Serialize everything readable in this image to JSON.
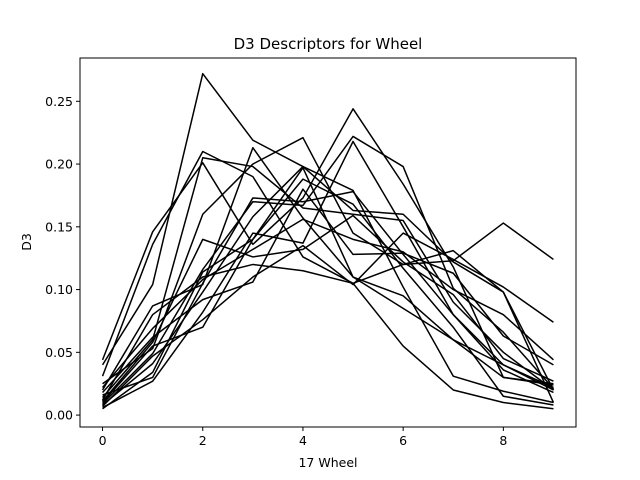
{
  "chart_data": {
    "type": "line",
    "title": "D3 Descriptors for Wheel",
    "xlabel": "17 Wheel",
    "ylabel": "D3",
    "xlim": [
      -0.45,
      9.45
    ],
    "ylim": [
      -0.0095,
      0.2845
    ],
    "xticks": [
      0,
      2,
      4,
      6,
      8
    ],
    "yticks": [
      0.0,
      0.05,
      0.1,
      0.15,
      0.2,
      0.25
    ],
    "ytick_labels": [
      "0.00",
      "0.05",
      "0.10",
      "0.15",
      "0.20",
      "0.25"
    ],
    "grid": false,
    "line_color": "#000000",
    "x": [
      0,
      1,
      2,
      3,
      4,
      5,
      6,
      7,
      8,
      9
    ],
    "series": [
      {
        "values": [
          0.04,
          0.104,
          0.272,
          0.219,
          0.198,
          0.163,
          0.16,
          0.122,
          0.098,
          0.01
        ]
      },
      {
        "values": [
          0.044,
          0.146,
          0.201,
          0.136,
          0.173,
          0.244,
          0.184,
          0.118,
          0.03,
          0.025
        ]
      },
      {
        "values": [
          0.031,
          0.136,
          0.21,
          0.19,
          0.126,
          0.105,
          0.055,
          0.02,
          0.01,
          0.005
        ]
      },
      {
        "values": [
          0.025,
          0.053,
          0.16,
          0.2,
          0.221,
          0.145,
          0.12,
          0.131,
          0.098,
          0.02
        ]
      },
      {
        "values": [
          0.02,
          0.087,
          0.104,
          0.213,
          0.157,
          0.11,
          0.095,
          0.06,
          0.03,
          0.024
        ]
      },
      {
        "values": [
          0.016,
          0.03,
          0.105,
          0.173,
          0.17,
          0.178,
          0.128,
          0.08,
          0.04,
          0.02
        ]
      },
      {
        "values": [
          0.014,
          0.06,
          0.205,
          0.198,
          0.165,
          0.16,
          0.155,
          0.09,
          0.05,
          0.02
        ]
      },
      {
        "values": [
          0.012,
          0.08,
          0.11,
          0.12,
          0.115,
          0.105,
          0.12,
          0.123,
          0.153,
          0.124
        ]
      },
      {
        "values": [
          0.01,
          0.055,
          0.07,
          0.14,
          0.197,
          0.11,
          0.085,
          0.06,
          0.04,
          0.022
        ]
      },
      {
        "values": [
          0.008,
          0.041,
          0.098,
          0.158,
          0.198,
          0.179,
          0.102,
          0.031,
          0.019,
          0.01
        ]
      },
      {
        "values": [
          0.006,
          0.027,
          0.082,
          0.145,
          0.137,
          0.218,
          0.15,
          0.08,
          0.036,
          0.018
        ]
      },
      {
        "values": [
          0.005,
          0.034,
          0.114,
          0.14,
          0.188,
          0.168,
          0.117,
          0.07,
          0.015,
          0.008
        ]
      },
      {
        "values": [
          0.022,
          0.069,
          0.108,
          0.132,
          0.156,
          0.14,
          0.13,
          0.1,
          0.08,
          0.044
        ]
      },
      {
        "values": [
          0.018,
          0.062,
          0.092,
          0.106,
          0.18,
          0.128,
          0.129,
          0.113,
          0.063,
          0.04
        ]
      },
      {
        "values": [
          0.011,
          0.058,
          0.14,
          0.126,
          0.132,
          0.159,
          0.122,
          0.096,
          0.045,
          0.027
        ]
      },
      {
        "values": [
          0.009,
          0.049,
          0.116,
          0.17,
          0.167,
          0.222,
          0.198,
          0.101,
          0.066,
          0.021
        ]
      },
      {
        "values": [
          0.007,
          0.047,
          0.076,
          0.11,
          0.135,
          0.104,
          0.145,
          0.124,
          0.102,
          0.074
        ]
      }
    ]
  }
}
